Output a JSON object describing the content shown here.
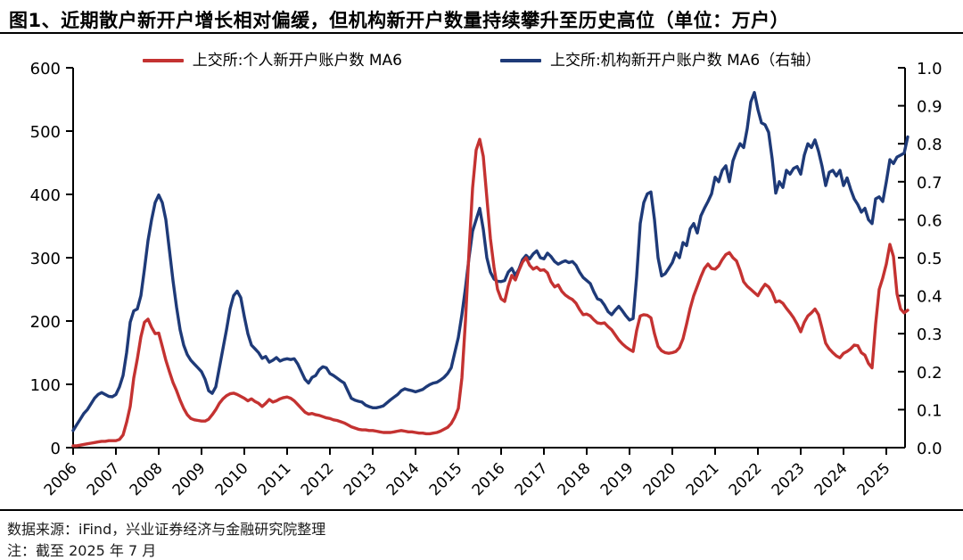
{
  "title": "图1、近期散户新开户增长相对偏缓，但机构新开户数量持续攀升至历史高位（单位：万户）",
  "legend": [
    {
      "label": "上交所:个人新开户账户数 MA6",
      "color": "#c43231"
    },
    {
      "label": "上交所:机构新开户账户数 MA6（右轴）",
      "color": "#1e3a78"
    }
  ],
  "footer": {
    "source": "数据来源：iFind，兴业证券经济与金融研究院整理",
    "note": "注：截至 2025 年 7 月"
  },
  "colors": {
    "individual_line": "#c43231",
    "institution_line": "#1e3a78",
    "axis": "#000000"
  },
  "chart_data": {
    "type": "line",
    "title": "图1、近期散户新开户增长相对偏缓，但机构新开户数量持续攀升至历史高位（单位：万户）",
    "x_start_year": 2006,
    "x_step_months": 1,
    "x_end_label": "2025-07",
    "x_tick_years": [
      2006,
      2007,
      2008,
      2009,
      2010,
      2011,
      2012,
      2013,
      2014,
      2015,
      2016,
      2017,
      2018,
      2019,
      2020,
      2021,
      2022,
      2023,
      2024,
      2025
    ],
    "left_axis": {
      "min": 0,
      "max": 600,
      "ticks": [
        0,
        100,
        200,
        300,
        400,
        500,
        600
      ]
    },
    "right_axis": {
      "min": 0.0,
      "max": 1.0,
      "ticks": [
        0.0,
        0.1,
        0.2,
        0.3,
        0.4,
        0.5,
        0.6,
        0.7,
        0.8,
        0.9,
        1.0
      ]
    },
    "grid": false,
    "legend_position": "top",
    "series": [
      {
        "name": "上交所:个人新开户账户数 MA6",
        "axis": "left",
        "color": "#c43231",
        "values": [
          3,
          3,
          4,
          5,
          6,
          7,
          8,
          9,
          10,
          10,
          11,
          11,
          11,
          13,
          20,
          40,
          65,
          110,
          140,
          175,
          198,
          203,
          190,
          180,
          181,
          160,
          138,
          120,
          103,
          90,
          75,
          62,
          52,
          46,
          44,
          43,
          42,
          42,
          45,
          52,
          60,
          70,
          77,
          82,
          85,
          86,
          84,
          81,
          78,
          74,
          77,
          73,
          70,
          65,
          70,
          76,
          72,
          74,
          77,
          79,
          80,
          78,
          74,
          68,
          62,
          56,
          53,
          54,
          52,
          51,
          49,
          47,
          46,
          44,
          43,
          41,
          39,
          36,
          33,
          31,
          29,
          28,
          28,
          27,
          27,
          26,
          25,
          24,
          24,
          24,
          25,
          26,
          27,
          26,
          25,
          25,
          24,
          23,
          23,
          22,
          22,
          23,
          24,
          26,
          29,
          32,
          38,
          48,
          62,
          110,
          200,
          310,
          410,
          470,
          487,
          460,
          395,
          330,
          285,
          250,
          235,
          231,
          255,
          272,
          265,
          280,
          293,
          300,
          288,
          282,
          285,
          280,
          281,
          276,
          262,
          254,
          257,
          247,
          241,
          237,
          234,
          228,
          218,
          210,
          211,
          208,
          202,
          197,
          196,
          197,
          191,
          186,
          178,
          170,
          164,
          159,
          155,
          152,
          185,
          208,
          210,
          209,
          205,
          180,
          160,
          153,
          150,
          149,
          150,
          152,
          158,
          172,
          195,
          220,
          240,
          255,
          270,
          283,
          290,
          283,
          282,
          287,
          297,
          305,
          308,
          300,
          295,
          280,
          262,
          255,
          250,
          245,
          240,
          250,
          258,
          254,
          245,
          230,
          232,
          228,
          220,
          213,
          205,
          195,
          183,
          198,
          208,
          213,
          219,
          210,
          188,
          165,
          156,
          150,
          145,
          142,
          149,
          152,
          156,
          162,
          161,
          150,
          146,
          133,
          126,
          195,
          250,
          268,
          290,
          321,
          302,
          243,
          219,
          213,
          217
        ]
      },
      {
        "name": "上交所:机构新开户账户数 MA6（右轴）",
        "axis": "right",
        "color": "#1e3a78",
        "values": [
          0.045,
          0.06,
          0.075,
          0.09,
          0.1,
          0.115,
          0.13,
          0.14,
          0.145,
          0.14,
          0.135,
          0.134,
          0.14,
          0.16,
          0.19,
          0.25,
          0.33,
          0.36,
          0.365,
          0.4,
          0.47,
          0.545,
          0.6,
          0.645,
          0.665,
          0.645,
          0.6,
          0.52,
          0.44,
          0.37,
          0.31,
          0.27,
          0.245,
          0.23,
          0.22,
          0.21,
          0.2,
          0.18,
          0.15,
          0.143,
          0.16,
          0.21,
          0.26,
          0.31,
          0.365,
          0.4,
          0.412,
          0.395,
          0.345,
          0.3,
          0.27,
          0.26,
          0.25,
          0.235,
          0.24,
          0.225,
          0.23,
          0.237,
          0.228,
          0.232,
          0.234,
          0.232,
          0.234,
          0.22,
          0.2,
          0.18,
          0.17,
          0.185,
          0.19,
          0.205,
          0.213,
          0.21,
          0.195,
          0.19,
          0.183,
          0.176,
          0.17,
          0.15,
          0.13,
          0.125,
          0.122,
          0.12,
          0.112,
          0.108,
          0.105,
          0.105,
          0.107,
          0.11,
          0.118,
          0.126,
          0.133,
          0.14,
          0.15,
          0.155,
          0.152,
          0.15,
          0.147,
          0.15,
          0.153,
          0.16,
          0.166,
          0.17,
          0.172,
          0.178,
          0.185,
          0.195,
          0.21,
          0.25,
          0.29,
          0.35,
          0.42,
          0.5,
          0.57,
          0.6,
          0.63,
          0.575,
          0.5,
          0.462,
          0.444,
          0.438,
          0.437,
          0.44,
          0.462,
          0.472,
          0.453,
          0.47,
          0.495,
          0.506,
          0.497,
          0.51,
          0.518,
          0.5,
          0.497,
          0.512,
          0.503,
          0.49,
          0.483,
          0.488,
          0.492,
          0.487,
          0.49,
          0.48,
          0.462,
          0.448,
          0.44,
          0.432,
          0.41,
          0.392,
          0.388,
          0.375,
          0.358,
          0.35,
          0.362,
          0.372,
          0.36,
          0.347,
          0.336,
          0.34,
          0.45,
          0.59,
          0.645,
          0.668,
          0.673,
          0.6,
          0.5,
          0.452,
          0.458,
          0.472,
          0.487,
          0.513,
          0.5,
          0.54,
          0.532,
          0.576,
          0.59,
          0.565,
          0.61,
          0.63,
          0.648,
          0.668,
          0.712,
          0.7,
          0.73,
          0.742,
          0.7,
          0.755,
          0.78,
          0.8,
          0.79,
          0.84,
          0.91,
          0.935,
          0.89,
          0.855,
          0.85,
          0.83,
          0.76,
          0.67,
          0.7,
          0.685,
          0.73,
          0.72,
          0.735,
          0.74,
          0.72,
          0.77,
          0.8,
          0.79,
          0.81,
          0.78,
          0.74,
          0.69,
          0.725,
          0.73,
          0.715,
          0.73,
          0.69,
          0.71,
          0.68,
          0.655,
          0.64,
          0.62,
          0.63,
          0.6,
          0.59,
          0.655,
          0.66,
          0.648,
          0.7,
          0.758,
          0.748,
          0.765,
          0.77,
          0.775,
          0.818
        ]
      }
    ]
  }
}
